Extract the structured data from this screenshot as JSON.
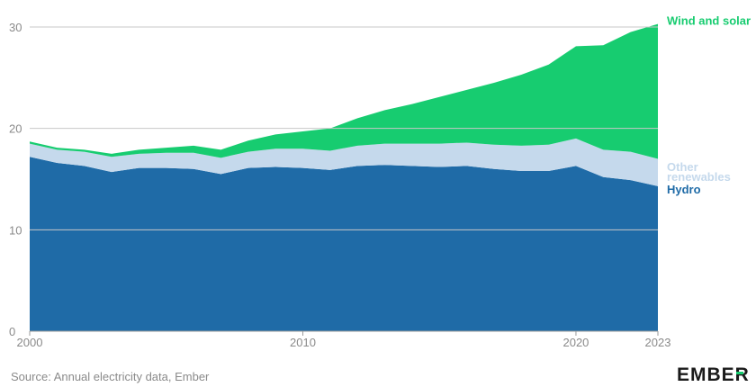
{
  "chart_data": {
    "type": "area",
    "stacked": true,
    "x": [
      2000,
      2001,
      2002,
      2003,
      2004,
      2005,
      2006,
      2007,
      2008,
      2009,
      2010,
      2011,
      2012,
      2013,
      2014,
      2015,
      2016,
      2017,
      2018,
      2019,
      2020,
      2021,
      2022,
      2023
    ],
    "series": [
      {
        "name": "Hydro",
        "color": "#1f6ba7",
        "values": [
          17.2,
          16.6,
          16.3,
          15.7,
          16.1,
          16.1,
          16.0,
          15.5,
          16.1,
          16.2,
          16.1,
          15.9,
          16.3,
          16.4,
          16.3,
          16.2,
          16.3,
          16.0,
          15.8,
          15.8,
          16.3,
          15.2,
          14.9,
          14.3
        ]
      },
      {
        "name": "Other renewables",
        "color": "#c5d9ec",
        "values": [
          1.3,
          1.3,
          1.4,
          1.5,
          1.4,
          1.5,
          1.6,
          1.6,
          1.6,
          1.8,
          1.9,
          1.9,
          2.0,
          2.1,
          2.2,
          2.3,
          2.3,
          2.4,
          2.5,
          2.6,
          2.7,
          2.7,
          2.8,
          2.7
        ]
      },
      {
        "name": "Wind and solar",
        "color": "#17cc70",
        "values": [
          0.2,
          0.2,
          0.2,
          0.3,
          0.4,
          0.5,
          0.7,
          0.8,
          1.1,
          1.4,
          1.7,
          2.2,
          2.7,
          3.3,
          3.9,
          4.6,
          5.2,
          6.1,
          7.0,
          7.9,
          9.1,
          10.3,
          11.8,
          13.3
        ]
      }
    ],
    "series_labels": [
      "Hydro",
      "Other renewables",
      "Wind and solar"
    ],
    "series_label_lines": [
      [
        "Hydro"
      ],
      [
        "Other",
        "renewables"
      ],
      [
        "Wind and solar"
      ]
    ],
    "xlim": [
      2000,
      2023
    ],
    "ylim": [
      0,
      30
    ],
    "x_ticks": [
      2000,
      2010,
      2020,
      2023
    ],
    "y_ticks": [
      0,
      10,
      20,
      30
    ],
    "grid": true,
    "legend": "right, inline labels at series ends"
  },
  "source": "Source: Annual electricity data, Ember",
  "logo": "EMBER"
}
